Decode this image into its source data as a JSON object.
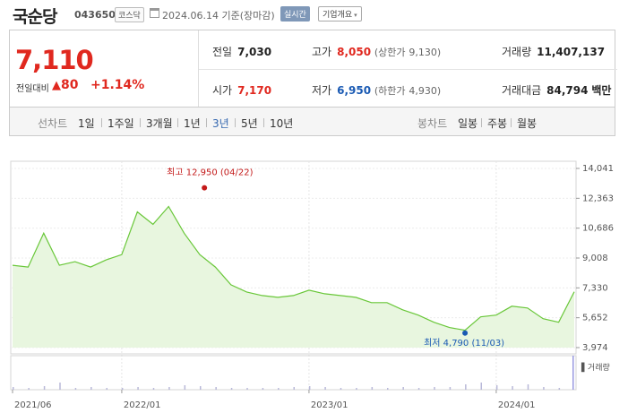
{
  "header": {
    "name": "국순당",
    "code": "043650",
    "market": "코스닥",
    "date": "2024.06.14 기준(장마감)",
    "realtime_button": "실시간",
    "company_button": "기업개요",
    "company_caret": "▾"
  },
  "quote": {
    "price": "7,110",
    "change_label": "전일대비",
    "change_arrow": "▲",
    "change": "80",
    "change_pct": "+1.14%",
    "prev_close_label": "전일",
    "prev_close": "7,030",
    "high_label": "고가",
    "high": "8,050",
    "upper_limit_label": "(상한가",
    "upper_limit": "9,130)",
    "volume_label": "거래량",
    "volume": "11,407,137",
    "open_label": "시가",
    "open": "7,170",
    "low_label": "저가",
    "low": "6,950",
    "lower_limit_label": "(하한가",
    "lower_limit": "4,930)",
    "amount_label": "거래대금",
    "amount": "84,794",
    "amount_unit": "백만"
  },
  "tabs": {
    "line_label": "선차트",
    "periods": [
      "1일",
      "1주일",
      "3개월",
      "1년",
      "3년",
      "5년",
      "10년"
    ],
    "selected": "3년",
    "candle_label": "봉차트",
    "candles": [
      "일봉",
      "주봉",
      "월봉"
    ]
  },
  "chart_data": {
    "type": "area",
    "y_ticks": [
      "14,041",
      "12,363",
      "10,686",
      "9,008",
      "7,330",
      "5,652",
      "3,974"
    ],
    "ylim": [
      3974,
      14041
    ],
    "x_ticks": [
      "2021/06",
      "2022/01",
      "2023/01",
      "2024/01"
    ],
    "x": [
      "2021/06",
      "2021/07",
      "2021/08",
      "2021/09",
      "2021/10",
      "2021/11",
      "2021/12",
      "2022/01",
      "2022/02",
      "2022/03",
      "2022/04",
      "2022/05",
      "2022/06",
      "2022/07",
      "2022/08",
      "2022/09",
      "2022/10",
      "2022/11",
      "2022/12",
      "2023/01",
      "2023/02",
      "2023/03",
      "2023/04",
      "2023/05",
      "2023/06",
      "2023/07",
      "2023/08",
      "2023/09",
      "2023/10",
      "2023/11",
      "2023/12",
      "2024/01",
      "2024/02",
      "2024/03",
      "2024/04",
      "2024/05",
      "2024/06"
    ],
    "values": [
      8600,
      8500,
      10400,
      8600,
      8800,
      8500,
      8900,
      9200,
      11600,
      10900,
      11900,
      10400,
      9200,
      8500,
      7500,
      7100,
      6900,
      6800,
      6900,
      7200,
      7000,
      6900,
      6800,
      6500,
      6500,
      6100,
      5800,
      5400,
      5100,
      4950,
      5700,
      5800,
      6300,
      6200,
      5600,
      5400,
      7110
    ],
    "high_annotation": "최고 12,950 (04/22)",
    "low_annotation": "최저 4,790 (11/03)",
    "volume_label": "거래량",
    "line_color": "#69c739",
    "fill_color": "#e8f6df",
    "high_color": "#c41a1a",
    "low_color": "#1a5ab3"
  }
}
